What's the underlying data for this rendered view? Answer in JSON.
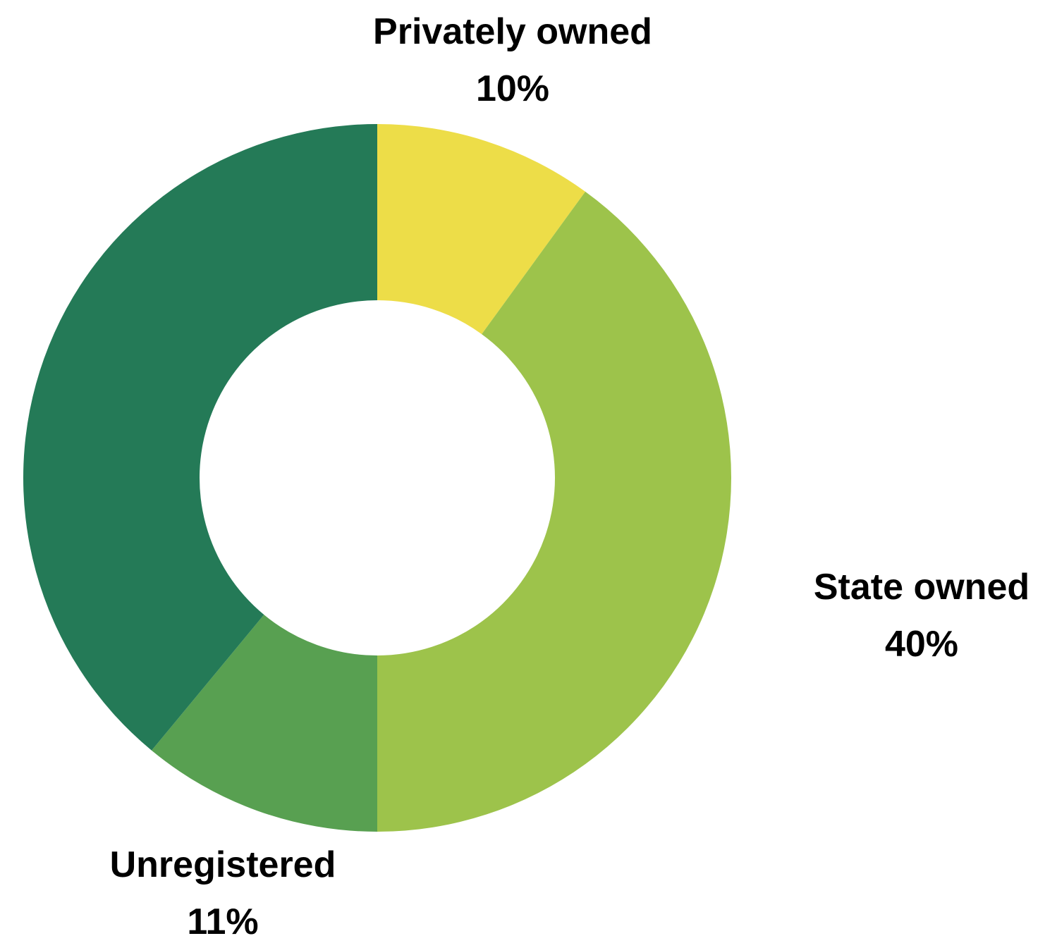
{
  "chart_data": {
    "type": "pie",
    "donut": true,
    "title": "",
    "slices": [
      {
        "label": "Privately owned",
        "value_label": "10%",
        "value": 10,
        "color": "#EDDD48"
      },
      {
        "label": "State owned",
        "value_label": "40%",
        "value": 40,
        "color": "#9DC34B"
      },
      {
        "label": "Unregistered",
        "value_label": "11%",
        "value": 11,
        "color": "#58A051"
      },
      {
        "label": "",
        "value_label": "",
        "value": 39,
        "color": "#247A57"
      }
    ]
  }
}
